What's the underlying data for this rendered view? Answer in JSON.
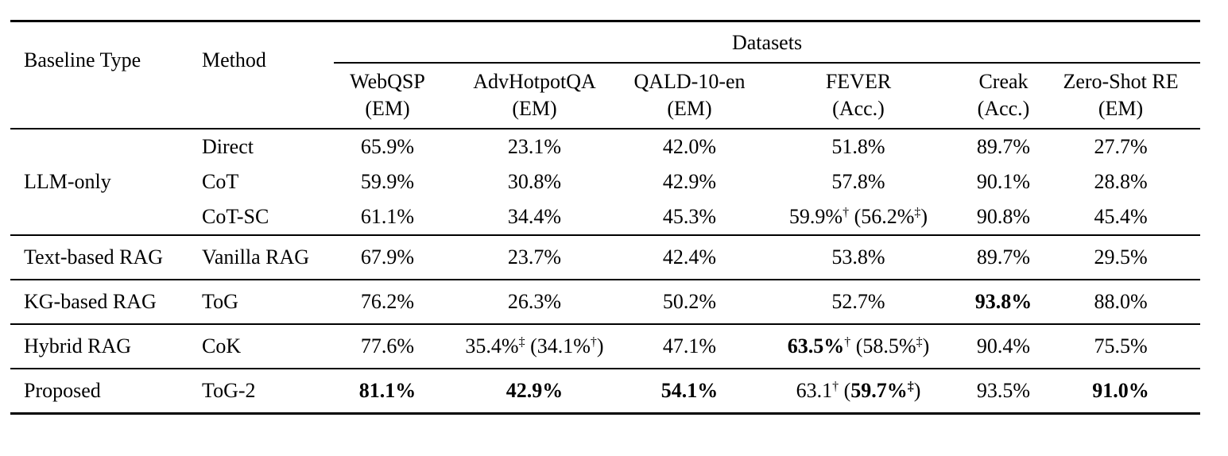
{
  "page": {
    "background_color": "#ffffff",
    "text_color": "#000000"
  },
  "table": {
    "header": {
      "baseline_type": "Baseline Type",
      "method": "Method",
      "datasets_label": "Datasets",
      "columns": [
        {
          "name": "WebQSP",
          "metric": "(EM)"
        },
        {
          "name": "AdvHotpotQA",
          "metric": "(EM)"
        },
        {
          "name": "QALD-10-en",
          "metric": "(EM)"
        },
        {
          "name": "FEVER",
          "metric": "(Acc.)"
        },
        {
          "name": "Creak",
          "metric": "(Acc.)"
        },
        {
          "name": "Zero-Shot RE",
          "metric": "(EM)"
        }
      ]
    },
    "groups": [
      {
        "baseline_type": "LLM-only",
        "rows": [
          {
            "method": "Direct",
            "cells": [
              "65.9%",
              "23.1%",
              "42.0%",
              "51.8%",
              "89.7%",
              "27.7%"
            ]
          },
          {
            "method": "CoT",
            "cells": [
              "59.9%",
              "30.8%",
              "42.9%",
              "57.8%",
              "90.1%",
              "28.8%"
            ]
          },
          {
            "method": "CoT-SC",
            "cells": [
              "61.1%",
              "34.4%",
              "45.3%",
              [
                {
                  "t": "59.9%"
                },
                {
                  "t": "†",
                  "sup": true
                },
                {
                  "t": " (56.2%"
                },
                {
                  "t": "‡",
                  "sup": true
                },
                {
                  "t": ")"
                }
              ],
              "90.8%",
              "45.4%"
            ]
          }
        ]
      },
      {
        "baseline_type": "Text-based RAG",
        "rows": [
          {
            "method": "Vanilla RAG",
            "cells": [
              "67.9%",
              "23.7%",
              "42.4%",
              "53.8%",
              "89.7%",
              "29.5%"
            ]
          }
        ]
      },
      {
        "baseline_type": "KG-based RAG",
        "rows": [
          {
            "method": "ToG",
            "cells": [
              "76.2%",
              "26.3%",
              "50.2%",
              "52.7%",
              [
                {
                  "t": "93.8%",
                  "b": true
                }
              ],
              "88.0%"
            ]
          }
        ]
      },
      {
        "baseline_type": "Hybrid RAG",
        "rows": [
          {
            "method": "CoK",
            "cells": [
              "77.6%",
              [
                {
                  "t": "35.4%"
                },
                {
                  "t": "‡",
                  "sup": true
                },
                {
                  "t": " (34.1%"
                },
                {
                  "t": "†",
                  "sup": true
                },
                {
                  "t": ")"
                }
              ],
              "47.1%",
              [
                {
                  "t": "63.5%",
                  "b": true
                },
                {
                  "t": "†",
                  "sup": true
                },
                {
                  "t": " (58.5%"
                },
                {
                  "t": "‡",
                  "sup": true
                },
                {
                  "t": ")"
                }
              ],
              "90.4%",
              "75.5%"
            ]
          }
        ]
      },
      {
        "baseline_type": "Proposed",
        "rows": [
          {
            "method": "ToG-2",
            "cells": [
              [
                {
                  "t": "81.1%",
                  "b": true
                }
              ],
              [
                {
                  "t": "42.9%",
                  "b": true
                }
              ],
              [
                {
                  "t": "54.1%",
                  "b": true
                }
              ],
              [
                {
                  "t": "63.1"
                },
                {
                  "t": "†",
                  "sup": true
                },
                {
                  "t": " ("
                },
                {
                  "t": "59.7%",
                  "b": true
                },
                {
                  "t": "‡",
                  "sup": true,
                  "b": true
                },
                {
                  "t": ")"
                }
              ],
              "93.5%",
              [
                {
                  "t": "91.0%",
                  "b": true
                }
              ]
            ]
          }
        ]
      }
    ]
  }
}
